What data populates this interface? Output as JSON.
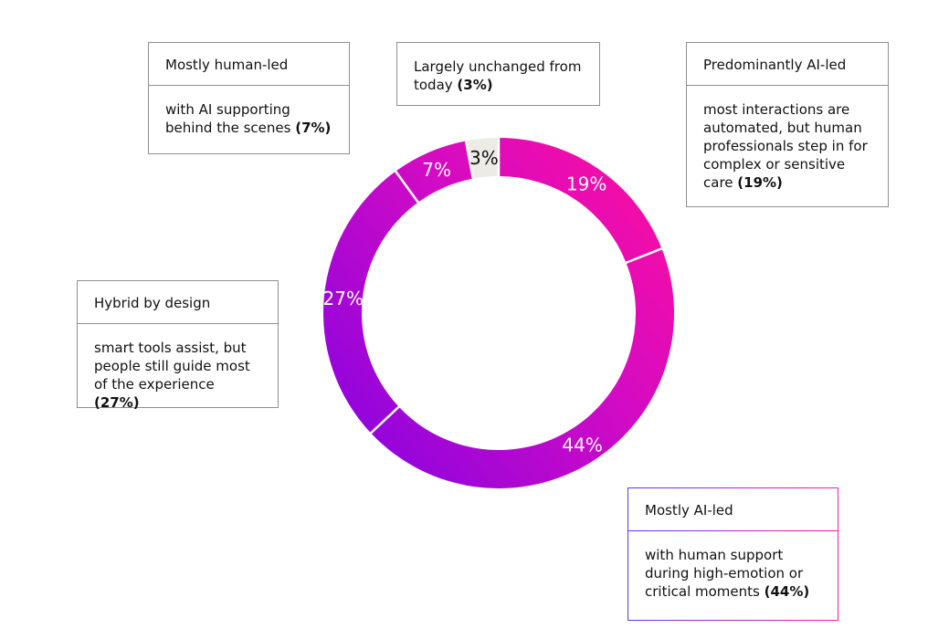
{
  "chart_data": {
    "type": "pie",
    "style": "donut",
    "title": "",
    "start_angle_deg": 0,
    "direction": "clockwise",
    "slices": [
      {
        "key": "predominantly-ai-led",
        "value": 19,
        "label": "19%",
        "color_start": "#ff10a4",
        "color_end": "#f307b0"
      },
      {
        "key": "mostly-ai-led",
        "value": 44,
        "label": "44%",
        "color_start": "#f30ab2",
        "color_end": "#9d07d8"
      },
      {
        "key": "hybrid-by-design",
        "value": 27,
        "label": "27%",
        "color_start": "#8f06e0",
        "color_end": "#b20ad6"
      },
      {
        "key": "mostly-human-led",
        "value": 7,
        "label": "7%",
        "color_start": "#b80bd4",
        "color_end": "#c40cd0"
      },
      {
        "key": "largely-unchanged",
        "value": 3,
        "label": "3%",
        "color_start": "#ecebe6",
        "color_end": "#ecebe6"
      }
    ]
  },
  "callouts": {
    "human_led": {
      "title": "Mostly human-led",
      "text": "with AI supporting behind the scenes ",
      "pct": "(7%)"
    },
    "unchanged": {
      "text": "Largely unchanged from today ",
      "pct": "(3%)"
    },
    "predominantly_ai": {
      "title": "Predominantly AI-led",
      "text": "most interactions are automated, but human professionals step in for complex or sensitive care ",
      "pct": "(19%)"
    },
    "hybrid": {
      "title": "Hybrid by design",
      "text": "smart tools assist, but people still guide most of the experience ",
      "pct": "(27%)"
    },
    "mostly_ai": {
      "title": "Mostly AI-led",
      "text": "with human support during high-emotion or critical moments ",
      "pct": "(44%)"
    }
  },
  "colors": {
    "unchanged_label": "#111111",
    "slice_label": "#ffffff",
    "divider": "#ffffff"
  }
}
